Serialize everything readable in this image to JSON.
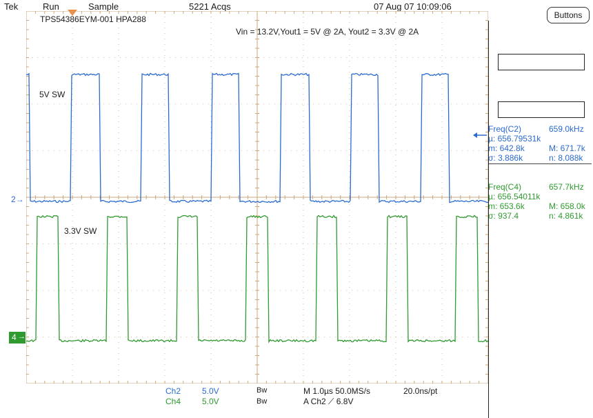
{
  "header": {
    "brand": "Tek",
    "run_state": "Run",
    "acq_mode": "Sample",
    "acq_count": "5221 Acqs",
    "datetime": "07 Aug 07 10:09:06"
  },
  "buttons_label": "Buttons",
  "screen": {
    "title_left": "TPS54386EYM-001 HPA288",
    "title_right": "Vin = 13.2V,Yout1 = 5V @ 2A, Yout2 = 3.3V @ 2A",
    "trace_blue_label": "5V SW",
    "trace_green_label": "3.3V SW",
    "ch2_marker": "2",
    "ch4_marker": "4"
  },
  "colors": {
    "grid": "#c9a87c",
    "ch2": "#2b6bd0",
    "ch4": "#2f9a2f",
    "trigger": "#f08a3c"
  },
  "measurements": {
    "c2": {
      "title": "Freq(C2)",
      "value": "659.0kHz",
      "mean": "µ: 656.79531k",
      "min": "m: 642.8k",
      "max": "M: 671.7k",
      "sigma": "σ: 3.886k",
      "n": "n: 8.088k"
    },
    "c4": {
      "title": "Freq(C4)",
      "value": "657.7kHz",
      "mean": "µ: 656.54011k",
      "min": "m: 653.6k",
      "max": "M: 658.0k",
      "sigma": "σ: 937.4",
      "n": "n: 4.861k"
    }
  },
  "footer": {
    "ch2_label": "Ch2",
    "ch2_scale": "5.0V",
    "ch4_label": "Ch4",
    "ch4_scale": "5.0V",
    "bw1": "Bw",
    "bw2": "Bw",
    "timebase": "M 1.0µs 50.0MS/s",
    "trigger": "A  Ch2  ⟋  6.8V",
    "resolution": "20.0ns/pt"
  }
}
